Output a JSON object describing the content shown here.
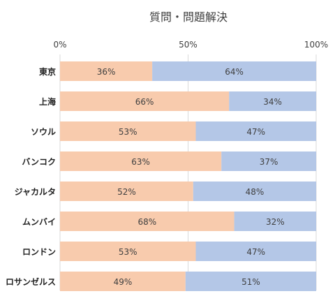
{
  "chart_data": {
    "type": "bar",
    "orientation": "horizontal",
    "stacked": "percent",
    "title": "質問・問題解決",
    "categories": [
      "東京",
      "上海",
      "ソウル",
      "バンコク",
      "ジャカルタ",
      "ムンバイ",
      "ロンドン",
      "ロサンゼルス"
    ],
    "series": [
      {
        "values": [
          36,
          66,
          53,
          63,
          52,
          68,
          53,
          49
        ],
        "color": "#F8CBAD"
      },
      {
        "values": [
          64,
          34,
          47,
          37,
          48,
          32,
          47,
          51
        ],
        "color": "#B4C7E7"
      }
    ],
    "data_label_suffix": "%",
    "x_ticks": [
      "0%",
      "50%",
      "100%"
    ],
    "xlim": [
      0,
      100
    ],
    "ticks_position": "top",
    "grid": true,
    "legend": "none"
  }
}
